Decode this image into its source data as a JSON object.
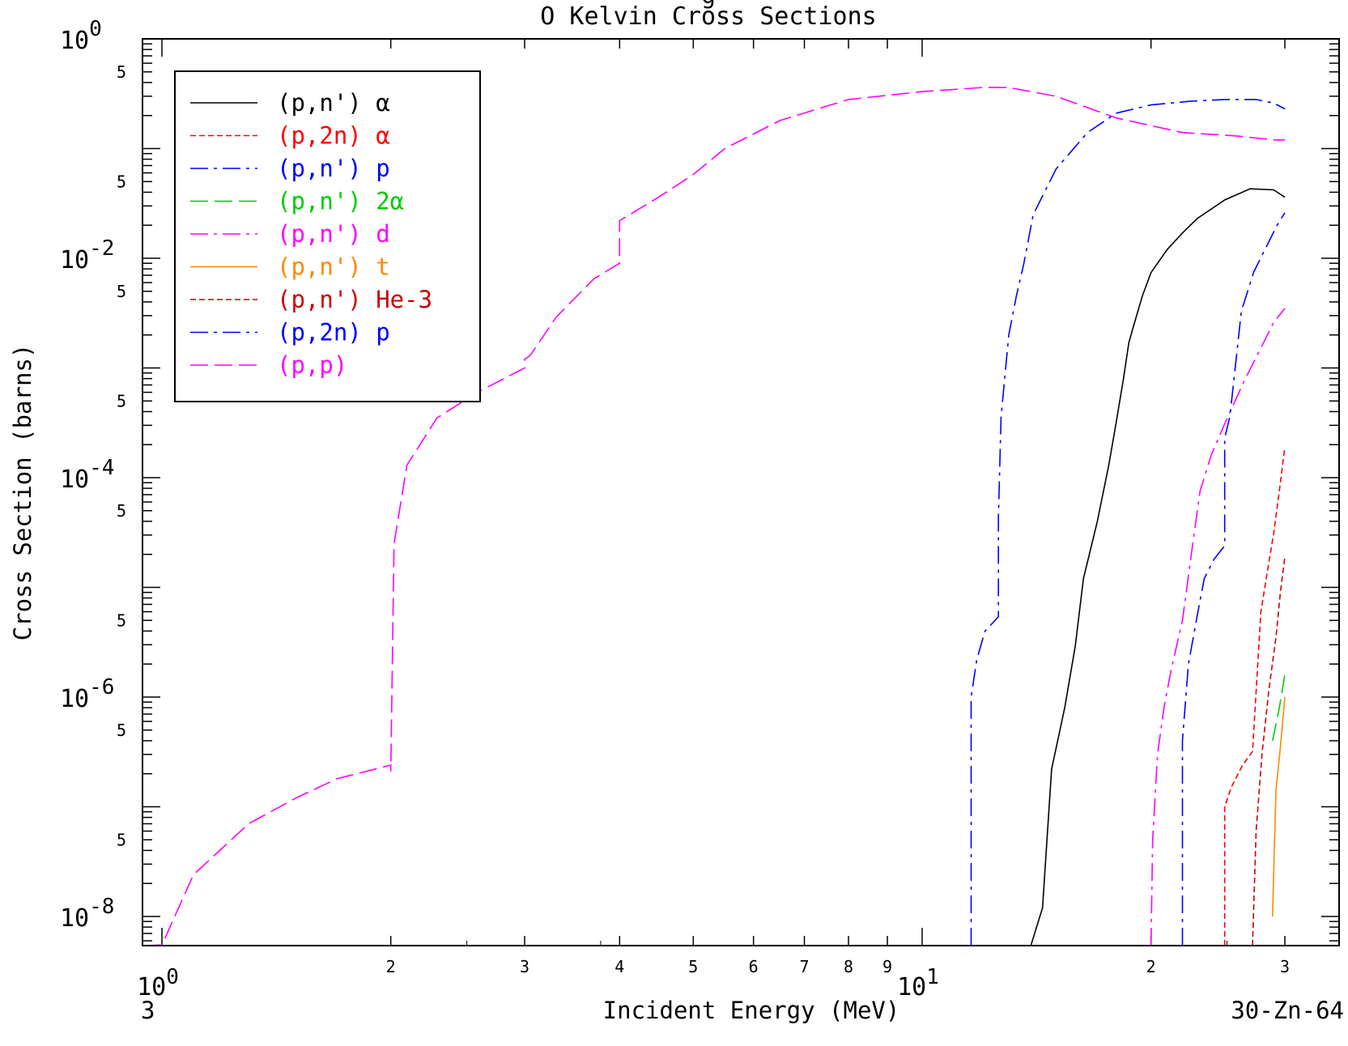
{
  "chart_data": {
    "type": "line",
    "title": "O Kelvin Cross Sections",
    "title_top_partial": "g",
    "xlabel": "Incident Energy (MeV)",
    "ylabel": "Cross Section (barns)",
    "xscale": "log",
    "yscale": "log",
    "xlim": [
      0.9,
      31
    ],
    "ylim": [
      1e-09,
      1
    ],
    "x_major_ticks": [
      {
        "value": 1,
        "base": "10",
        "exp": "0"
      },
      {
        "value": 10,
        "base": "10",
        "exp": "1"
      }
    ],
    "x_minor_labels": [
      {
        "value": 2,
        "label": "2"
      },
      {
        "value": 3,
        "label": "3"
      },
      {
        "value": 4,
        "label": "4"
      },
      {
        "value": 5,
        "label": "5"
      },
      {
        "value": 6,
        "label": "6"
      },
      {
        "value": 7,
        "label": "7"
      },
      {
        "value": 8,
        "label": "8"
      },
      {
        "value": 9,
        "label": "9"
      },
      {
        "value": 20,
        "label": "2"
      },
      {
        "value": 30,
        "label": "3"
      }
    ],
    "y_major_ticks": [
      {
        "value": 1,
        "base": "10",
        "exp": "0"
      },
      {
        "value": 0.01,
        "base": "10",
        "exp": "-2"
      },
      {
        "value": 0.0001,
        "base": "10",
        "exp": "-4"
      },
      {
        "value": 1e-06,
        "base": "10",
        "exp": "-6"
      },
      {
        "value": 1e-08,
        "base": "10",
        "exp": "-8"
      }
    ],
    "y_minor_labels": [
      {
        "value": 0.5,
        "label": "5"
      },
      {
        "value": 0.05,
        "label": "5"
      },
      {
        "value": 0.005,
        "label": "5"
      },
      {
        "value": 0.0005,
        "label": "5"
      },
      {
        "value": 5e-05,
        "label": "5"
      },
      {
        "value": 5e-06,
        "label": "5"
      },
      {
        "value": 5e-07,
        "label": "5"
      },
      {
        "value": 5e-08,
        "label": "5"
      }
    ],
    "footer_left": "3",
    "footer_right": "30-Zn-64",
    "grid": false,
    "legend_position": "top-left",
    "series": [
      {
        "name": "(p,n') α",
        "color": "#000000",
        "dash": "solid",
        "x": [
          13.5,
          13.9,
          14.4,
          14.8,
          15.4,
          15.9,
          16.3,
          17.0,
          17.6,
          18.0,
          18.4,
          18.7,
          19.0,
          19.5,
          20.0,
          21.0,
          22.0,
          23.0,
          25.0,
          27.0,
          29.0,
          30.0
        ],
        "y": [
          1e-09,
          4e-09,
          1.2e-08,
          2.2e-07,
          8e-07,
          2.9e-06,
          1.2e-05,
          4e-05,
          0.00013,
          0.00032,
          0.0008,
          0.0017,
          0.0025,
          0.0046,
          0.0074,
          0.012,
          0.017,
          0.023,
          0.034,
          0.043,
          0.042,
          0.036
        ]
      },
      {
        "name": "(p,2n) α",
        "color": "#ff0000",
        "dash": "short",
        "x": [
          25.0,
          25.0,
          25.5,
          26.4,
          27.2,
          27.9,
          28.4,
          29.0,
          29.6,
          30.0
        ],
        "y": [
          1e-09,
          1e-07,
          1.5e-07,
          2.4e-07,
          3.2e-07,
          6e-06,
          1.3e-05,
          3.1e-05,
          9e-05,
          0.00019
        ]
      },
      {
        "name": "(p,n') p",
        "color": "#0000ff",
        "dash": "dashdot",
        "x": [
          11.6,
          11.6,
          11.8,
          12.1,
          12.6,
          12.6,
          12.7,
          13.0,
          13.3,
          13.6,
          14.0,
          15.0,
          16.5,
          18.0,
          20.0,
          22.5,
          25.0,
          27.5,
          29.0,
          30.0
        ],
        "y": [
          1e-09,
          1e-06,
          2.2e-06,
          4e-06,
          5.4e-06,
          4.4e-05,
          0.00036,
          0.002,
          0.0045,
          0.0088,
          0.025,
          0.065,
          0.14,
          0.21,
          0.25,
          0.27,
          0.28,
          0.28,
          0.26,
          0.23
        ]
      },
      {
        "name": "(p,n') 2α",
        "color": "#00cc00",
        "dash": "long",
        "x": [
          28.9,
          29.5,
          30.0
        ],
        "y": [
          4e-07,
          8e-07,
          1.6e-06
        ]
      },
      {
        "name": "(p,n') d",
        "color": "#ff00ff",
        "dash": "dashdot",
        "x": [
          20.0,
          20.1,
          20.4,
          20.8,
          21.2,
          21.5,
          22.0,
          22.6,
          23.2,
          24.0,
          25.0,
          26.5,
          28.0,
          29.0,
          30.0
        ],
        "y": [
          1e-09,
          5e-08,
          3e-07,
          8e-07,
          1.6e-06,
          2.5e-06,
          5e-06,
          2e-05,
          7.5e-05,
          0.00016,
          0.00031,
          0.00075,
          0.0016,
          0.0026,
          0.0035
        ]
      },
      {
        "name": "(p,n') t",
        "color": "#ff8800",
        "dash": "solid",
        "x": [
          28.9,
          29.2,
          29.6,
          30.0
        ],
        "y": [
          1e-08,
          1.4e-07,
          3.5e-07,
          1e-06
        ]
      },
      {
        "name": "(p,n') He-3",
        "color": "#cc0000",
        "dash": "short",
        "x": [
          27.2,
          27.5,
          28.0,
          28.6,
          29.2,
          29.6,
          30.0
        ],
        "y": [
          1e-09,
          6e-08,
          3.1e-07,
          1.2e-06,
          3.5e-06,
          9e-06,
          1.9e-05
        ]
      },
      {
        "name": "(p,2n) p",
        "color": "#0000ff",
        "dash": "dashdot",
        "x": [
          22.0,
          22.0,
          22.4,
          23.0,
          23.5,
          24.2,
          25.0,
          25.0,
          25.4,
          26.3,
          27.3,
          28.4,
          29.3,
          30.0
        ],
        "y": [
          1e-09,
          4e-07,
          2e-06,
          5.5e-06,
          1.2e-05,
          1.8e-05,
          2.4e-05,
          0.00023,
          0.00036,
          0.0033,
          0.0075,
          0.013,
          0.02,
          0.026
        ]
      },
      {
        "name": "(p,p)",
        "color": "#ff00ff",
        "dash": "long",
        "x": [
          0.95,
          1.0,
          1.1,
          1.3,
          1.5,
          1.7,
          2.0,
          2.0,
          2.02,
          2.1,
          2.3,
          2.6,
          3.0,
          3.0,
          3.05,
          3.3,
          3.7,
          4.0,
          4.0,
          4.5,
          5.0,
          5.5,
          6.5,
          8.0,
          10.0,
          12.0,
          13.0,
          15.0,
          18.0,
          22.0,
          26.0,
          29.0,
          30.0
        ],
        "y": [
          1e-09,
          5.5e-09,
          2.4e-08,
          7e-08,
          1.2e-07,
          1.8e-07,
          2.4e-07,
          2.1e-07,
          2.5e-05,
          0.00013,
          0.00035,
          0.0006,
          0.001,
          0.0012,
          0.0013,
          0.0029,
          0.0065,
          0.009,
          0.022,
          0.036,
          0.058,
          0.1,
          0.18,
          0.28,
          0.33,
          0.36,
          0.36,
          0.3,
          0.19,
          0.14,
          0.13,
          0.12,
          0.12
        ]
      }
    ]
  }
}
